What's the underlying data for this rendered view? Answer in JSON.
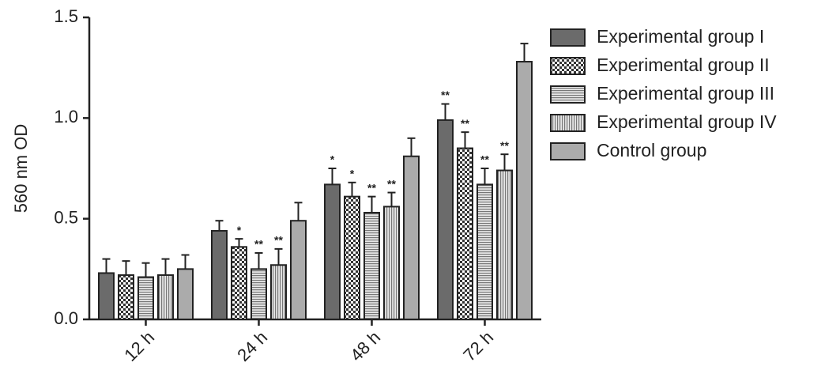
{
  "chart_data": {
    "type": "bar",
    "ylabel": "560 nm OD",
    "categories": [
      "12 h",
      "24 h",
      "48 h",
      "72 h"
    ],
    "ylim": [
      0,
      1.5
    ],
    "yticks": [
      {
        "value": 0,
        "label": "0.0"
      },
      0.5,
      {
        "value": 1,
        "label": "1.0"
      },
      1.5
    ],
    "legend": "right",
    "series": [
      {
        "name": "Experimental group I",
        "color": "#6b6b6b",
        "pattern": "solid",
        "values": [
          0.23,
          0.44,
          0.67,
          0.99
        ],
        "errors": [
          0.07,
          0.05,
          0.08,
          0.08
        ],
        "annotations": [
          null,
          null,
          "*",
          "**"
        ]
      },
      {
        "name": "Experimental group II",
        "color": "#444444",
        "pattern": "checker",
        "values": [
          0.22,
          0.36,
          0.61,
          0.85
        ],
        "errors": [
          0.07,
          0.04,
          0.07,
          0.08
        ],
        "annotations": [
          null,
          "*",
          "*",
          "**"
        ]
      },
      {
        "name": "Experimental group III",
        "color": "#777777",
        "pattern": "horizontal",
        "values": [
          0.21,
          0.25,
          0.53,
          0.67
        ],
        "errors": [
          0.07,
          0.08,
          0.08,
          0.08
        ],
        "annotations": [
          null,
          "**",
          "**",
          "**"
        ]
      },
      {
        "name": "Experimental group IV",
        "color": "#777777",
        "pattern": "vertical",
        "values": [
          0.22,
          0.27,
          0.56,
          0.74
        ],
        "errors": [
          0.08,
          0.08,
          0.07,
          0.08
        ],
        "annotations": [
          null,
          "**",
          "**",
          "**"
        ]
      },
      {
        "name": "Control group",
        "color": "#ababab",
        "pattern": "solid",
        "values": [
          0.25,
          0.49,
          0.81,
          1.28
        ],
        "errors": [
          0.07,
          0.09,
          0.09,
          0.09
        ],
        "annotations": [
          null,
          null,
          null,
          null
        ]
      }
    ]
  }
}
